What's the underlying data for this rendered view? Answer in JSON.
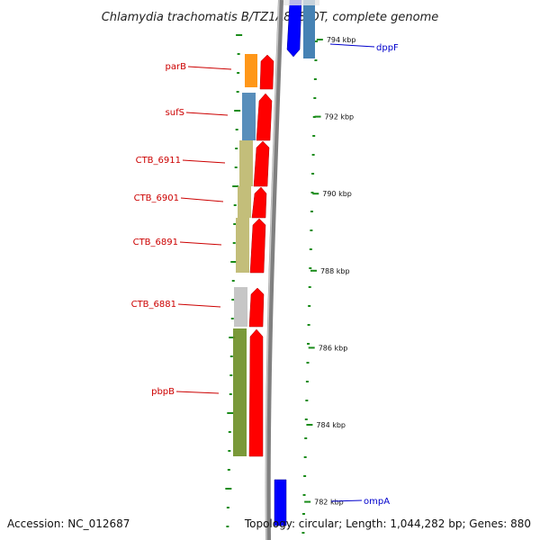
{
  "title": "Chlamydia trachomatis B/TZ1A828/OT, complete genome",
  "footer": {
    "accession": "Accession: NC_012687",
    "summary": "Topology: circular; Length: 1,044,282 bp; Genes: 880"
  },
  "colors": {
    "backbone": "#808080",
    "forward_arrow": "#ff0000",
    "reverse_arrow": "#0000ff",
    "tick": "#1a8c1a",
    "left_label": "#cc0000",
    "right_label": "#0000cc"
  },
  "scale_ticks": [
    {
      "label": "794 kbp",
      "kbp": 794
    },
    {
      "label": "792 kbp",
      "kbp": 792
    },
    {
      "label": "790 kbp",
      "kbp": 790
    },
    {
      "label": "788 kbp",
      "kbp": 788
    },
    {
      "label": "786 kbp",
      "kbp": 786
    },
    {
      "label": "784 kbp",
      "kbp": 784
    },
    {
      "label": "782 kbp",
      "kbp": 782
    }
  ],
  "genes_left": [
    {
      "name": "parB",
      "cog_color": "#ff8c00"
    },
    {
      "name": "sufS",
      "cog_color": "#4682b4"
    },
    {
      "name": "CTB_6911",
      "cog_color": "#bdb76b"
    },
    {
      "name": "CTB_6901",
      "cog_color": "#bdb76b"
    },
    {
      "name": "CTB_6891",
      "cog_color": "#bdb76b"
    },
    {
      "name": "CTB_6881",
      "cog_color": "#c0c0c0"
    },
    {
      "name": "pbpB",
      "cog_color": "#6b8e23"
    }
  ],
  "genes_right": [
    {
      "name": "dppF",
      "cog_color": "#4682b4"
    },
    {
      "name": "ompA",
      "cog_color": ""
    }
  ]
}
